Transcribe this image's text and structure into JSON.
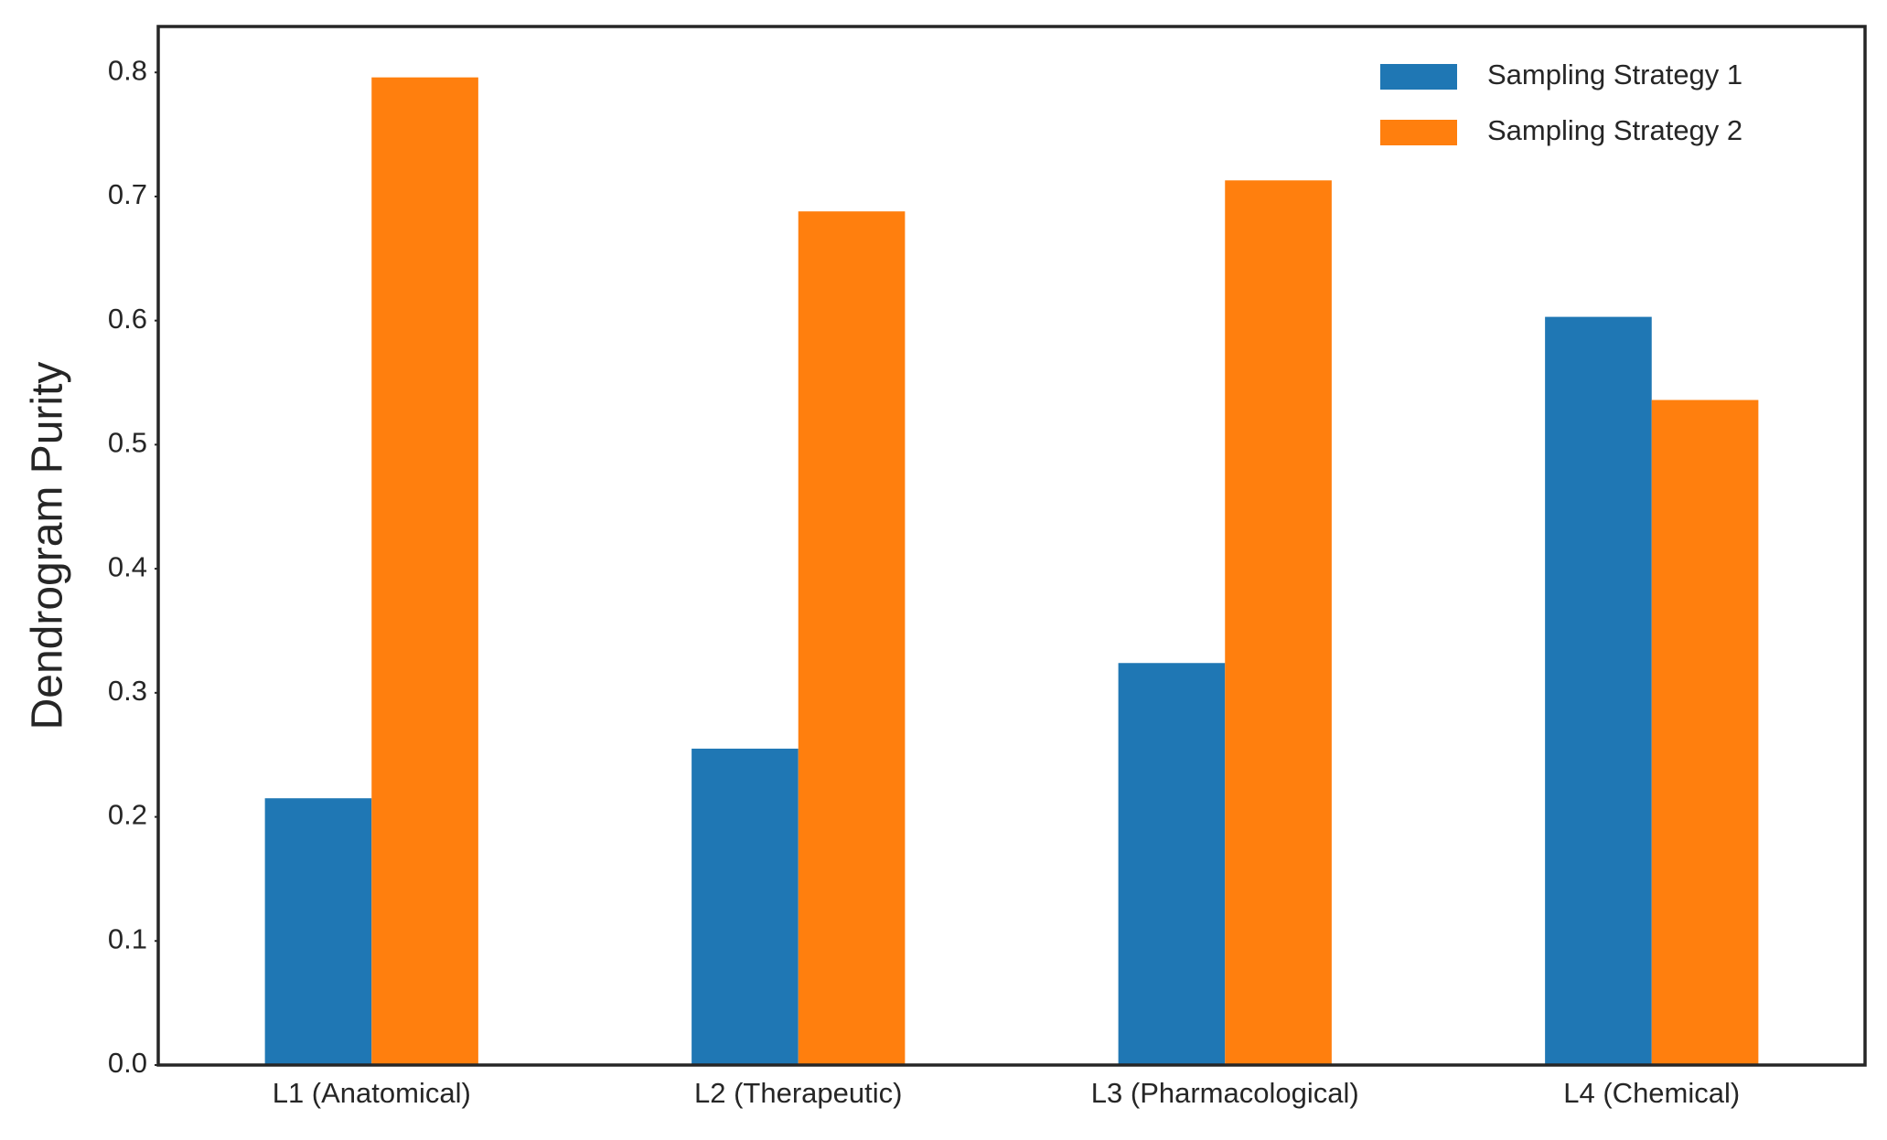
{
  "chart_data": {
    "type": "bar",
    "y_label": "Dendrogram Purity",
    "categories": [
      "L1 (Anatomical)",
      "L2 (Therapeutic)",
      "L3 (Pharmacological)",
      "L4 (Chemical)"
    ],
    "series": [
      {
        "name": "Sampling Strategy 1",
        "color": "#1f77b4",
        "values": [
          0.215,
          0.255,
          0.324,
          0.603
        ]
      },
      {
        "name": "Sampling Strategy 2",
        "color": "#ff7f0e",
        "values": [
          0.796,
          0.688,
          0.713,
          0.536
        ]
      }
    ],
    "ylim": [
      0,
      0.837
    ],
    "yticks": [
      {
        "value": 0,
        "label": "0.0"
      },
      0.1,
      0.2,
      0.3,
      0.4,
      0.5,
      0.6,
      0.7,
      0.8
    ],
    "grid": false,
    "legend": "upper right"
  }
}
